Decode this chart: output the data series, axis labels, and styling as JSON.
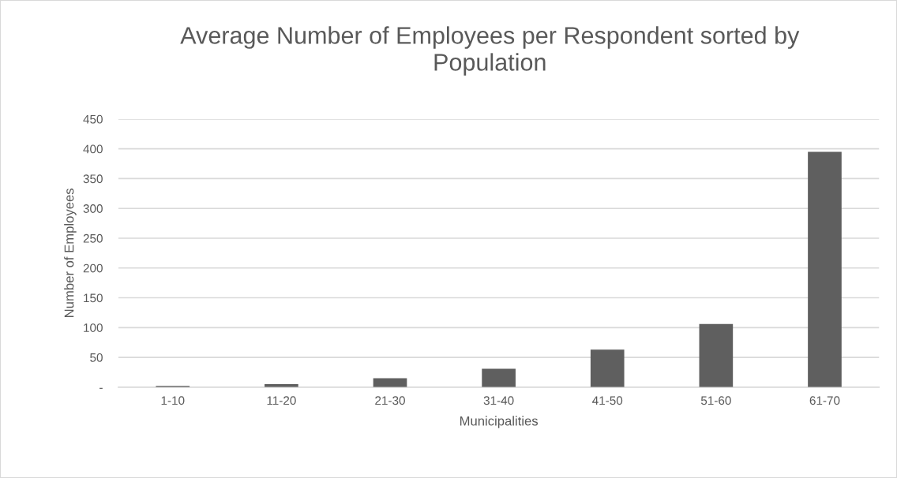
{
  "chart_data": {
    "type": "bar",
    "title": "Average Number of Employees per Respondent sorted by Population",
    "xlabel": "Municipalities",
    "ylabel": "Number of Employees",
    "categories": [
      "1-10",
      "11-20",
      "21-30",
      "31-40",
      "41-50",
      "51-60",
      "61-70"
    ],
    "values": [
      2,
      5,
      15,
      31,
      63,
      106,
      395
    ],
    "color": "#5f5f5f",
    "ylim": [
      0,
      450
    ],
    "yticks": [
      {
        "value": 0,
        "label": "-"
      },
      50,
      100,
      150,
      200,
      250,
      300,
      350,
      400,
      450
    ],
    "grid": "y",
    "legend": false
  }
}
